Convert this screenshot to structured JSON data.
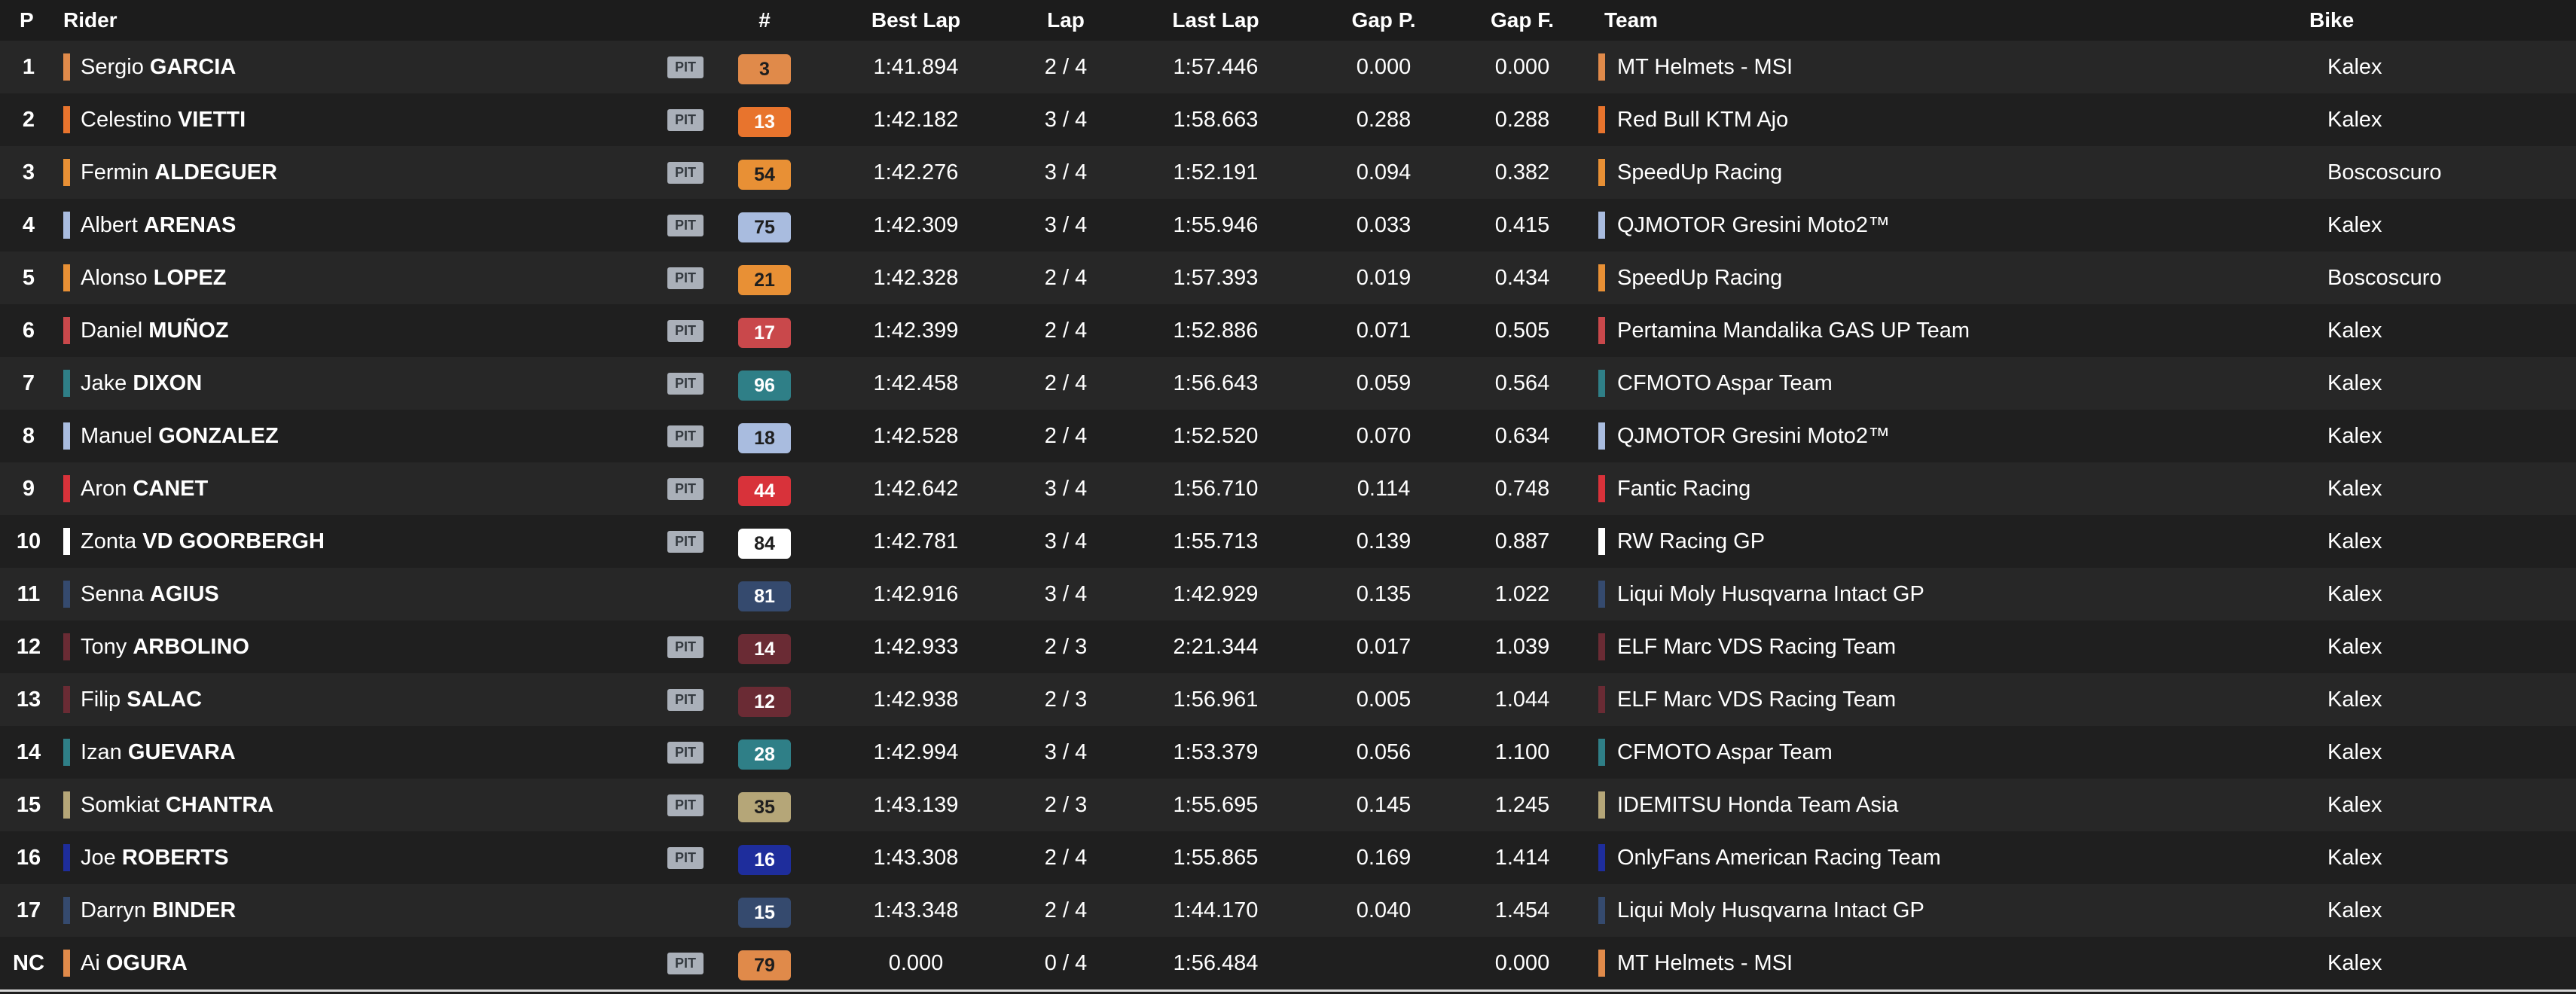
{
  "header": {
    "pos": "P",
    "rider": "Rider",
    "number": "#",
    "best_lap": "Best Lap",
    "lap": "Lap",
    "last_lap": "Last Lap",
    "gap_p": "Gap P.",
    "gap_f": "Gap F.",
    "team": "Team",
    "bike": "Bike"
  },
  "pit_label": "PIT",
  "rows": [
    {
      "pos": "1",
      "first": "Sergio",
      "last": "GARCIA",
      "pit": true,
      "number": "3",
      "num_bg": "#e08a4a",
      "num_fg": "#1e1e1e",
      "color": "#e08a4a",
      "best": "1:41.894",
      "lap": "2 / 4",
      "last_lap": "1:57.446",
      "gap_p": "0.000",
      "gap_f": "0.000",
      "team": "MT Helmets - MSI",
      "bike": "Kalex"
    },
    {
      "pos": "2",
      "first": "Celestino",
      "last": "VIETTI",
      "pit": true,
      "number": "13",
      "num_bg": "#e8742d",
      "num_fg": "#ffffff",
      "color": "#e8742d",
      "best": "1:42.182",
      "lap": "3 / 4",
      "last_lap": "1:58.663",
      "gap_p": "0.288",
      "gap_f": "0.288",
      "team": "Red Bull KTM Ajo",
      "bike": "Kalex"
    },
    {
      "pos": "3",
      "first": "Fermin",
      "last": "ALDEGUER",
      "pit": true,
      "number": "54",
      "num_bg": "#e89035",
      "num_fg": "#1e1e1e",
      "color": "#e89035",
      "best": "1:42.276",
      "lap": "3 / 4",
      "last_lap": "1:52.191",
      "gap_p": "0.094",
      "gap_f": "0.382",
      "team": "SpeedUp Racing",
      "bike": "Boscoscuro"
    },
    {
      "pos": "4",
      "first": "Albert",
      "last": "ARENAS",
      "pit": true,
      "number": "75",
      "num_bg": "#a9bcdf",
      "num_fg": "#1e1e1e",
      "color": "#a9bcdf",
      "best": "1:42.309",
      "lap": "3 / 4",
      "last_lap": "1:55.946",
      "gap_p": "0.033",
      "gap_f": "0.415",
      "team": "QJMOTOR Gresini Moto2™",
      "bike": "Kalex"
    },
    {
      "pos": "5",
      "first": "Alonso",
      "last": "LOPEZ",
      "pit": true,
      "number": "21",
      "num_bg": "#e89035",
      "num_fg": "#1e1e1e",
      "color": "#e89035",
      "best": "1:42.328",
      "lap": "2 / 4",
      "last_lap": "1:57.393",
      "gap_p": "0.019",
      "gap_f": "0.434",
      "team": "SpeedUp Racing",
      "bike": "Boscoscuro"
    },
    {
      "pos": "6",
      "first": "Daniel",
      "last": "MUÑOZ",
      "pit": true,
      "number": "17",
      "num_bg": "#c9484b",
      "num_fg": "#ffffff",
      "color": "#c9484b",
      "best": "1:42.399",
      "lap": "2 / 4",
      "last_lap": "1:52.886",
      "gap_p": "0.071",
      "gap_f": "0.505",
      "team": "Pertamina Mandalika GAS UP Team",
      "bike": "Kalex"
    },
    {
      "pos": "7",
      "first": "Jake",
      "last": "DIXON",
      "pit": true,
      "number": "96",
      "num_bg": "#2f7f87",
      "num_fg": "#ffffff",
      "color": "#2f7f87",
      "best": "1:42.458",
      "lap": "2 / 4",
      "last_lap": "1:56.643",
      "gap_p": "0.059",
      "gap_f": "0.564",
      "team": "CFMOTO Aspar Team",
      "bike": "Kalex"
    },
    {
      "pos": "8",
      "first": "Manuel",
      "last": "GONZALEZ",
      "pit": true,
      "number": "18",
      "num_bg": "#a9bcdf",
      "num_fg": "#1e1e1e",
      "color": "#a9bcdf",
      "best": "1:42.528",
      "lap": "2 / 4",
      "last_lap": "1:52.520",
      "gap_p": "0.070",
      "gap_f": "0.634",
      "team": "QJMOTOR Gresini Moto2™",
      "bike": "Kalex"
    },
    {
      "pos": "9",
      "first": "Aron",
      "last": "CANET",
      "pit": true,
      "number": "44",
      "num_bg": "#d8323a",
      "num_fg": "#ffffff",
      "color": "#d8323a",
      "best": "1:42.642",
      "lap": "3 / 4",
      "last_lap": "1:56.710",
      "gap_p": "0.114",
      "gap_f": "0.748",
      "team": "Fantic Racing",
      "bike": "Kalex"
    },
    {
      "pos": "10",
      "first": "Zonta",
      "last": "VD GOORBERGH",
      "pit": true,
      "number": "84",
      "num_bg": "#ffffff",
      "num_fg": "#1e1e1e",
      "color": "#ffffff",
      "best": "1:42.781",
      "lap": "3 / 4",
      "last_lap": "1:55.713",
      "gap_p": "0.139",
      "gap_f": "0.887",
      "team": "RW Racing GP",
      "bike": "Kalex"
    },
    {
      "pos": "11",
      "first": "Senna",
      "last": "AGIUS",
      "pit": false,
      "number": "81",
      "num_bg": "#354a6e",
      "num_fg": "#ffffff",
      "color": "#354a6e",
      "best": "1:42.916",
      "lap": "3 / 4",
      "last_lap": "1:42.929",
      "gap_p": "0.135",
      "gap_f": "1.022",
      "team": "Liqui Moly Husqvarna Intact GP",
      "bike": "Kalex"
    },
    {
      "pos": "12",
      "first": "Tony",
      "last": "ARBOLINO",
      "pit": true,
      "number": "14",
      "num_bg": "#6a2b34",
      "num_fg": "#ffffff",
      "color": "#6a2b34",
      "best": "1:42.933",
      "lap": "2 / 3",
      "last_lap": "2:21.344",
      "gap_p": "0.017",
      "gap_f": "1.039",
      "team": "ELF Marc VDS Racing Team",
      "bike": "Kalex"
    },
    {
      "pos": "13",
      "first": "Filip",
      "last": "SALAC",
      "pit": true,
      "number": "12",
      "num_bg": "#6a2b34",
      "num_fg": "#ffffff",
      "color": "#6a2b34",
      "best": "1:42.938",
      "lap": "2 / 3",
      "last_lap": "1:56.961",
      "gap_p": "0.005",
      "gap_f": "1.044",
      "team": "ELF Marc VDS Racing Team",
      "bike": "Kalex"
    },
    {
      "pos": "14",
      "first": "Izan",
      "last": "GUEVARA",
      "pit": true,
      "number": "28",
      "num_bg": "#2f7f87",
      "num_fg": "#ffffff",
      "color": "#2f7f87",
      "best": "1:42.994",
      "lap": "3 / 4",
      "last_lap": "1:53.379",
      "gap_p": "0.056",
      "gap_f": "1.100",
      "team": "CFMOTO Aspar Team",
      "bike": "Kalex"
    },
    {
      "pos": "15",
      "first": "Somkiat",
      "last": "CHANTRA",
      "pit": true,
      "number": "35",
      "num_bg": "#b5a678",
      "num_fg": "#1e1e1e",
      "color": "#b5a678",
      "best": "1:43.139",
      "lap": "2 / 3",
      "last_lap": "1:55.695",
      "gap_p": "0.145",
      "gap_f": "1.245",
      "team": "IDEMITSU Honda Team Asia",
      "bike": "Kalex"
    },
    {
      "pos": "16",
      "first": "Joe",
      "last": "ROBERTS",
      "pit": true,
      "number": "16",
      "num_bg": "#1e2d9c",
      "num_fg": "#ffffff",
      "color": "#1e2d9c",
      "best": "1:43.308",
      "lap": "2 / 4",
      "last_lap": "1:55.865",
      "gap_p": "0.169",
      "gap_f": "1.414",
      "team": "OnlyFans American Racing Team",
      "bike": "Kalex"
    },
    {
      "pos": "17",
      "first": "Darryn",
      "last": "BINDER",
      "pit": false,
      "number": "15",
      "num_bg": "#354a6e",
      "num_fg": "#ffffff",
      "color": "#354a6e",
      "best": "1:43.348",
      "lap": "2 / 4",
      "last_lap": "1:44.170",
      "gap_p": "0.040",
      "gap_f": "1.454",
      "team": "Liqui Moly Husqvarna Intact GP",
      "bike": "Kalex"
    },
    {
      "pos": "NC",
      "first": "Ai",
      "last": "OGURA",
      "pit": true,
      "number": "79",
      "num_bg": "#e08a4a",
      "num_fg": "#1e1e1e",
      "color": "#e08a4a",
      "best": "0.000",
      "lap": "0 / 4",
      "last_lap": "1:56.484",
      "gap_p": "",
      "gap_f": "0.000",
      "team": "MT Helmets - MSI",
      "bike": "Kalex"
    }
  ]
}
